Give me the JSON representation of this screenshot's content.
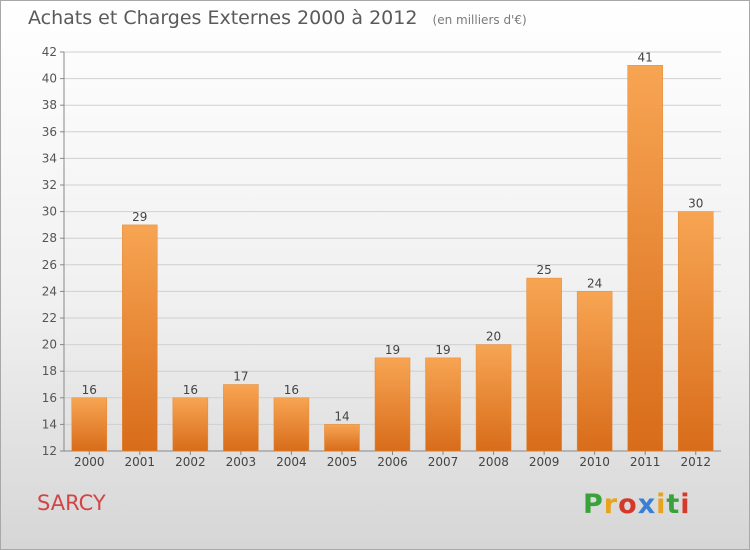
{
  "header": {
    "title": "Achats et Charges Externes 2000 à 2012",
    "subtitle": "(en milliers d'€)"
  },
  "footer": {
    "location": "SARCY",
    "brand": "Proxiti"
  },
  "colors": {
    "bar_light": "#f7a553",
    "bar_dark": "#d86c1a",
    "location_text": "#d24545",
    "logo_letters": [
      "#3aa23a",
      "#e9a21c",
      "#d33a2a",
      "#3a7fd1",
      "#e9a21c",
      "#3aa23a",
      "#d33a2a"
    ]
  },
  "chart_data": {
    "type": "bar",
    "title": "Achats et Charges Externes 2000 à 2012",
    "subtitle": "(en milliers d'€)",
    "categories": [
      "2000",
      "2001",
      "2002",
      "2003",
      "2004",
      "2005",
      "2006",
      "2007",
      "2008",
      "2009",
      "2010",
      "2011",
      "2012"
    ],
    "values": [
      16,
      29,
      16,
      17,
      16,
      14,
      19,
      19,
      20,
      25,
      24,
      41,
      30
    ],
    "ylim": [
      12,
      42
    ],
    "yticks": [
      12,
      14,
      16,
      18,
      20,
      22,
      24,
      26,
      28,
      30,
      32,
      34,
      36,
      38,
      40,
      42
    ],
    "grid": true,
    "xlabel": "",
    "ylabel": ""
  }
}
